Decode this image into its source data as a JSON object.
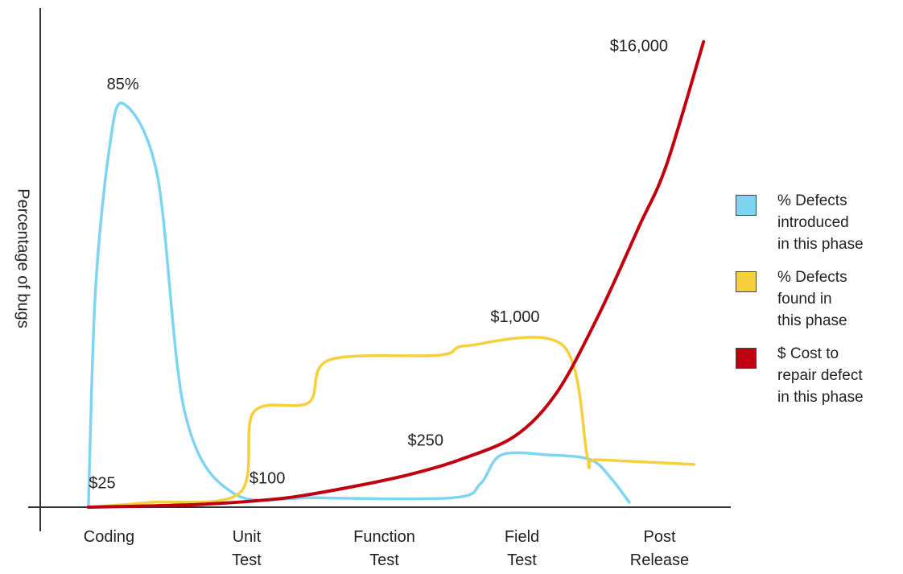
{
  "chart_data": {
    "type": "line",
    "title": "",
    "xlabel": "",
    "ylabel": "Percentage of bugs",
    "categories": [
      "Coding",
      "Unit\nTest",
      "Function\nTest",
      "Field\nTest",
      "Post\nRelease"
    ],
    "grid": false,
    "legend_position": "right",
    "series": [
      {
        "name": "% Defects introduced in this phase",
        "color": "#7fd4f2",
        "points": [
          [
            -0.15,
            0
          ],
          [
            -0.1,
            45
          ],
          [
            0.0,
            75
          ],
          [
            0.1,
            85
          ],
          [
            0.35,
            70
          ],
          [
            0.55,
            20
          ],
          [
            0.9,
            3
          ],
          [
            1.5,
            2
          ],
          [
            2.5,
            2
          ],
          [
            2.7,
            5
          ],
          [
            2.85,
            11
          ],
          [
            3.2,
            11
          ],
          [
            3.5,
            10
          ],
          [
            3.65,
            6
          ],
          [
            3.78,
            1
          ]
        ]
      },
      {
        "name": "% Defects found in this phase",
        "color": "#f5d03c",
        "points": [
          [
            -0.15,
            0
          ],
          [
            0.3,
            1
          ],
          [
            0.95,
            3
          ],
          [
            1.05,
            20
          ],
          [
            1.45,
            22
          ],
          [
            1.6,
            31
          ],
          [
            2.4,
            32
          ],
          [
            2.6,
            34
          ],
          [
            3.3,
            34
          ],
          [
            3.48,
            10
          ],
          [
            3.55,
            10
          ],
          [
            4.25,
            9
          ]
        ]
      },
      {
        "name": "$ Cost to repair defect in this phase",
        "color": "#c0000e",
        "points": [
          [
            -0.15,
            0
          ],
          [
            0.35,
            0.3
          ],
          [
            0.8,
            0.8
          ],
          [
            1.3,
            2
          ],
          [
            1.8,
            4.5
          ],
          [
            2.2,
            7
          ],
          [
            2.55,
            10
          ],
          [
            2.95,
            15
          ],
          [
            3.25,
            24
          ],
          [
            3.55,
            40
          ],
          [
            3.85,
            59
          ],
          [
            4.05,
            72
          ],
          [
            4.32,
            98
          ]
        ]
      }
    ],
    "annotations": [
      {
        "text": "85%",
        "x": 0.1,
        "y": 88
      },
      {
        "text": "$25",
        "x": -0.05,
        "y": 4
      },
      {
        "text": "$100",
        "x": 1.15,
        "y": 5
      },
      {
        "text": "$250",
        "x": 2.3,
        "y": 13
      },
      {
        "text": "$1,000",
        "x": 2.95,
        "y": 39
      },
      {
        "text": "$16,000",
        "x": 3.85,
        "y": 96
      }
    ],
    "xlim": [
      -0.5,
      4.5
    ],
    "ylim": [
      0,
      100
    ]
  }
}
